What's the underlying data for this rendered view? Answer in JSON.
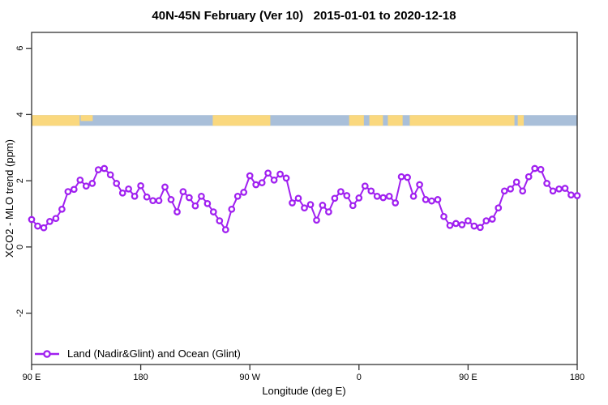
{
  "window": {
    "title": "40N-45N February (Ver 10)   2015-01-01 to 2020-12-18"
  },
  "axes": {
    "x_title": "Longitude (deg E)",
    "y_title": "XCO2 - MLO trend (ppm)"
  },
  "legend": {
    "label": "Land (Nadir&Glint) and Ocean (Glint)",
    "marker": "open-circle-on-line",
    "color": "#A020F0"
  },
  "chart_data": {
    "type": "line",
    "title": "40N-45N February (Ver 10)   2015-01-01 to 2020-12-18",
    "xlabel": "Longitude (deg E)",
    "ylabel": "XCO2 - MLO trend (ppm)",
    "x_ticks": [
      "90 E",
      "180",
      "90 W",
      "0",
      "90 E",
      "180"
    ],
    "y_ticks": [
      -2,
      0,
      2,
      4,
      6
    ],
    "ylim": [
      -3.55,
      6.48
    ],
    "x_start_deg": 90,
    "x_step_deg": 5,
    "x_span_deg": 450,
    "grid": false,
    "legend_position": "bottom-left",
    "series": [
      {
        "name": "Land (Nadir&Glint) and Ocean (Glint)",
        "color": "#A020F0",
        "marker": "open-circle",
        "values": [
          0.83,
          0.63,
          0.58,
          0.77,
          0.86,
          1.14,
          1.67,
          1.74,
          2.02,
          1.84,
          1.92,
          2.33,
          2.37,
          2.18,
          1.92,
          1.63,
          1.75,
          1.53,
          1.85,
          1.51,
          1.4,
          1.4,
          1.81,
          1.43,
          1.06,
          1.67,
          1.49,
          1.24,
          1.53,
          1.31,
          1.06,
          0.79,
          0.52,
          1.14,
          1.53,
          1.65,
          2.15,
          1.88,
          1.94,
          2.23,
          2.02,
          2.2,
          2.08,
          1.33,
          1.47,
          1.18,
          1.28,
          0.81,
          1.26,
          1.06,
          1.47,
          1.67,
          1.55,
          1.25,
          1.48,
          1.84,
          1.69,
          1.53,
          1.49,
          1.53,
          1.33,
          2.12,
          2.1,
          1.53,
          1.88,
          1.43,
          1.39,
          1.43,
          0.92,
          0.65,
          0.71,
          0.67,
          0.79,
          0.63,
          0.59,
          0.79,
          0.84,
          1.18,
          1.69,
          1.75,
          1.96,
          1.69,
          2.12,
          2.37,
          2.34,
          1.92,
          1.69,
          1.75,
          1.77,
          1.57,
          1.55
        ]
      }
    ],
    "map_band": {
      "description": "land/ocean strip along longitude at 40N-45N",
      "y_top_value": 3.98,
      "y_bottom_value": 3.66,
      "land_color": "#FAD87E",
      "ocean_color": "#A9BFD9",
      "land_segments": [
        [
          0.0,
          0.088
        ],
        [
          0.332,
          0.4375
        ],
        [
          0.582,
          0.609
        ],
        [
          0.619,
          0.644
        ],
        [
          0.653,
          0.68
        ],
        [
          0.693,
          0.885
        ],
        [
          0.891,
          0.902
        ]
      ],
      "partial_land_segments": [
        [
          0.09,
          0.112
        ]
      ]
    }
  }
}
